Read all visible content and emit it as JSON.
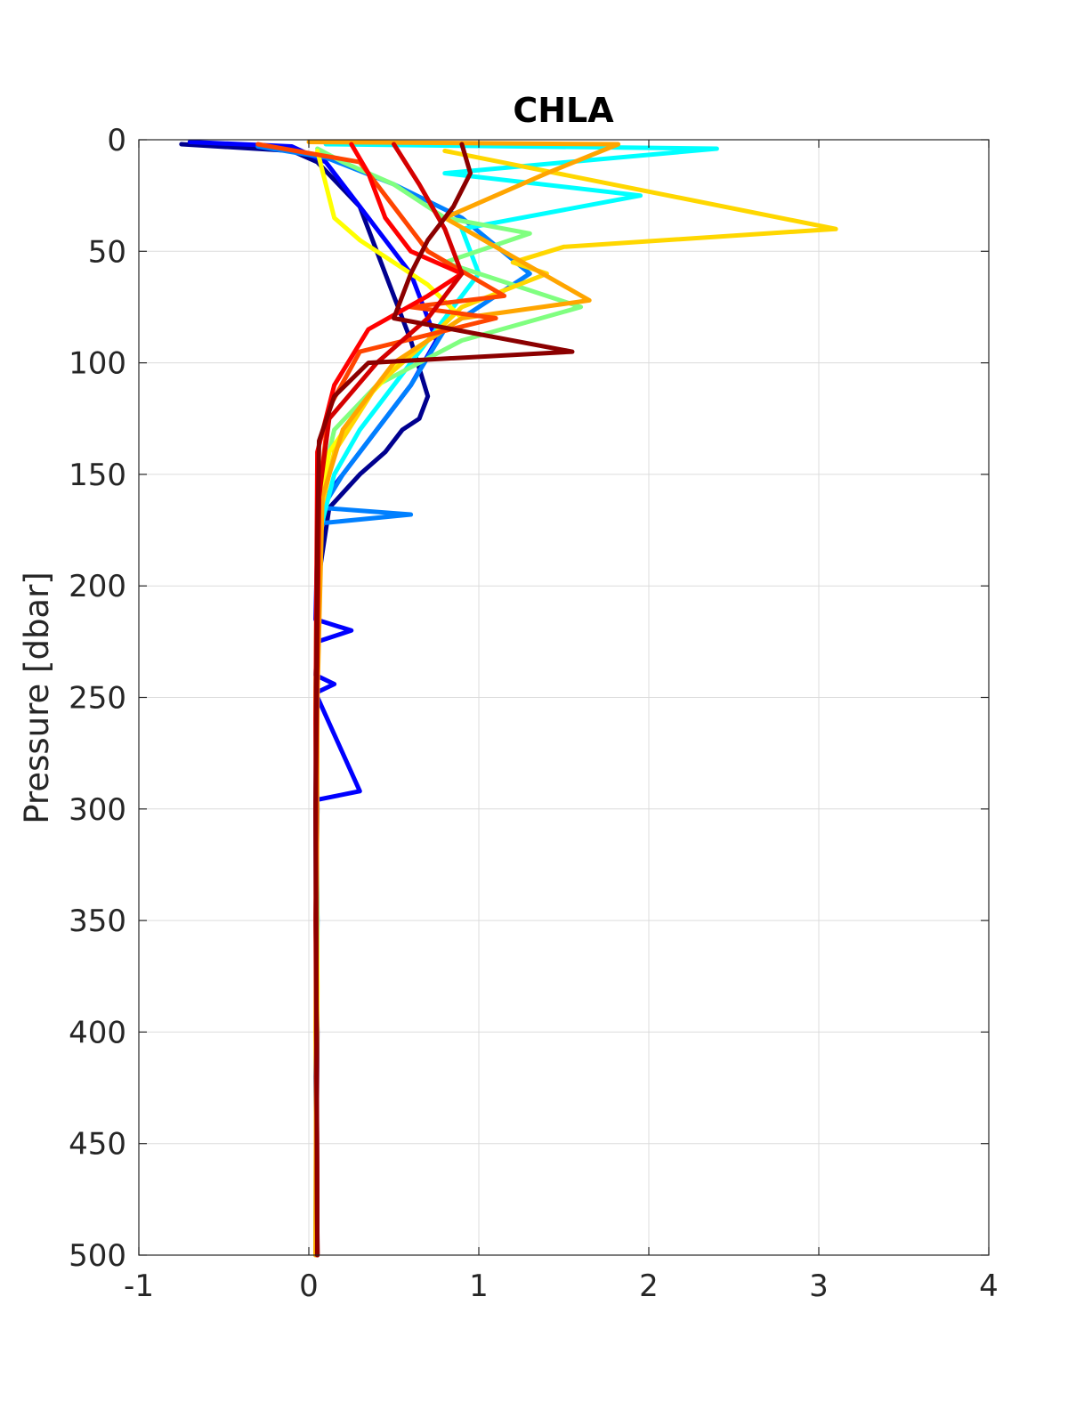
{
  "chart_data": {
    "type": "line",
    "title": "CHLA",
    "xlabel": "",
    "ylabel": "Pressure [dbar]",
    "xlim": [
      -1,
      4
    ],
    "ylim": [
      0,
      500
    ],
    "y_reversed": true,
    "xticks": [
      "-1",
      "0",
      "1",
      "2",
      "3",
      "4"
    ],
    "yticks": [
      "0",
      "50",
      "100",
      "150",
      "200",
      "250",
      "300",
      "350",
      "400",
      "450",
      "500"
    ],
    "grid": true,
    "legend": "none",
    "colormap": "jet",
    "series": [
      {
        "color": "#00008f",
        "x": [
          -0.75,
          -0.1,
          0.05,
          0.3,
          0.45,
          0.6,
          0.7,
          0.65,
          0.55,
          0.45,
          0.3,
          0.12,
          0.05,
          0.04,
          0.05,
          0.04,
          0.05,
          0.04
        ],
        "y": [
          2,
          5,
          10,
          30,
          60,
          90,
          115,
          125,
          130,
          140,
          150,
          165,
          200,
          250,
          300,
          350,
          400,
          500
        ]
      },
      {
        "color": "#0000ff",
        "x": [
          -0.7,
          -0.1,
          0.1,
          0.35,
          0.6,
          0.75,
          0.6,
          0.4,
          0.25,
          0.1,
          0.05,
          0.04,
          0.25,
          0.05,
          0.04,
          0.15,
          0.04,
          0.3,
          0.04,
          0.05,
          0.04,
          0.05
        ],
        "y": [
          1,
          3,
          10,
          35,
          60,
          90,
          110,
          130,
          145,
          160,
          180,
          215,
          220,
          225,
          240,
          244,
          248,
          292,
          296,
          350,
          420,
          500
        ]
      },
      {
        "color": "#0080ff",
        "x": [
          -0.3,
          0.1,
          0.5,
          0.9,
          1.3,
          1.2,
          0.8,
          0.6,
          0.4,
          0.2,
          0.08,
          0.6,
          0.06,
          0.05,
          0.04,
          0.05
        ],
        "y": [
          3,
          8,
          20,
          35,
          60,
          65,
          85,
          110,
          130,
          150,
          165,
          168,
          172,
          200,
          300,
          500
        ]
      },
      {
        "color": "#00ffff",
        "x": [
          0.1,
          2.4,
          0.8,
          1.95,
          0.9,
          1.0,
          0.75,
          0.5,
          0.3,
          0.15,
          0.05,
          0.04,
          0.05,
          0.04
        ],
        "y": [
          2,
          4,
          15,
          25,
          40,
          60,
          85,
          110,
          130,
          150,
          180,
          250,
          350,
          500
        ]
      },
      {
        "color": "#80ff80",
        "x": [
          0.05,
          0.2,
          0.5,
          0.8,
          1.3,
          0.8,
          1.6,
          0.9,
          0.4,
          0.15,
          0.06,
          0.05,
          0.04
        ],
        "y": [
          4,
          10,
          20,
          35,
          42,
          55,
          75,
          90,
          110,
          130,
          160,
          250,
          500
        ]
      },
      {
        "color": "#ffff00",
        "x": [
          0.05,
          0.1,
          0.15,
          0.3,
          0.5,
          0.7,
          0.9,
          0.6,
          0.35,
          0.12,
          0.05,
          0.04,
          0.05,
          0.04
        ],
        "y": [
          5,
          20,
          35,
          45,
          55,
          65,
          80,
          95,
          115,
          140,
          170,
          250,
          380,
          500
        ]
      },
      {
        "color": "#ffd700",
        "x": [
          0.8,
          3.1,
          1.5,
          1.2,
          1.4,
          0.9,
          0.7,
          0.4,
          0.15,
          0.06,
          0.05,
          0.04,
          0.05
        ],
        "y": [
          5,
          40,
          48,
          55,
          60,
          75,
          90,
          110,
          140,
          170,
          250,
          400,
          500
        ]
      },
      {
        "color": "#ffa500",
        "x": [
          0.0,
          1.82,
          1.4,
          0.8,
          1.65,
          0.9,
          0.5,
          0.2,
          0.08,
          0.05,
          0.04
        ],
        "y": [
          1,
          2,
          15,
          35,
          72,
          80,
          100,
          130,
          160,
          250,
          500
        ]
      },
      {
        "color": "#ff4500",
        "x": [
          -0.3,
          0.3,
          0.5,
          0.7,
          1.15,
          0.6,
          1.1,
          0.3,
          0.12,
          0.06,
          0.05,
          0.04,
          0.05
        ],
        "y": [
          2,
          10,
          30,
          50,
          70,
          75,
          80,
          95,
          120,
          160,
          200,
          350,
          500
        ]
      },
      {
        "color": "#ff0000",
        "x": [
          0.25,
          0.35,
          0.45,
          0.6,
          0.9,
          0.7,
          0.35,
          0.15,
          0.05,
          0.04,
          0.05
        ],
        "y": [
          2,
          15,
          35,
          50,
          60,
          70,
          85,
          110,
          140,
          260,
          500
        ]
      },
      {
        "color": "#d40000",
        "x": [
          0.5,
          0.65,
          0.8,
          0.9,
          0.7,
          0.4,
          0.12,
          0.06,
          0.04,
          0.05
        ],
        "y": [
          2,
          20,
          40,
          60,
          80,
          100,
          125,
          160,
          300,
          500
        ]
      },
      {
        "color": "#8b0000",
        "x": [
          0.9,
          0.95,
          0.85,
          0.7,
          0.6,
          0.5,
          1.55,
          0.35,
          0.15,
          0.06,
          0.05,
          0.04,
          0.05
        ],
        "y": [
          2,
          15,
          30,
          45,
          60,
          80,
          95,
          100,
          115,
          135,
          180,
          300,
          500
        ]
      }
    ]
  }
}
